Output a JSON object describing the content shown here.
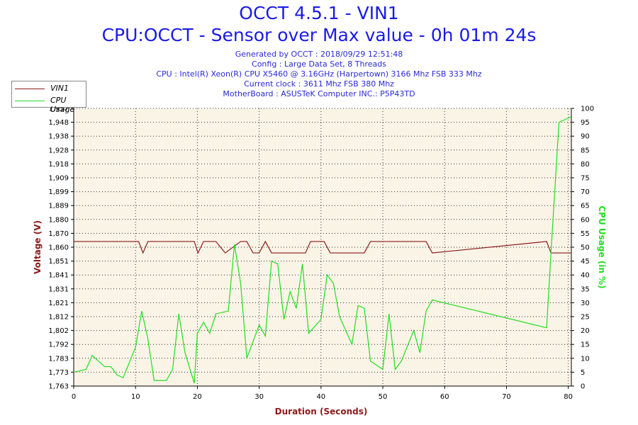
{
  "header": {
    "title": "OCCT 4.5.1 - VIN1",
    "subtitle": "CPU:OCCT - Sensor over Max value - 0h 01m 24s",
    "info_lines": [
      "Generated by OCCT : 2018/09/29 12:51:48",
      "Config : Large Data Set, 8 Threads",
      "CPU : Intel(R) Xeon(R) CPU X5460 @ 3.16GHz (Harpertown) 3166 Mhz FSB 333 Mhz",
      "Current clock : 3611 Mhz FSB 380 Mhz",
      "MotherBoard : ASUSTeK Computer INC.: P5P43TD"
    ]
  },
  "legend": {
    "items": [
      {
        "label": "VIN1",
        "color": "#8b1a1a"
      },
      {
        "label": "CPU Usage",
        "color": "#22dd22"
      }
    ]
  },
  "chart_data": {
    "type": "line",
    "xlabel": "Duration (Seconds)",
    "ylabel": "Voltage (V)",
    "y2label": "CPU Usage (in %)",
    "xlim": [
      0,
      80.5
    ],
    "ylim": [
      1.763,
      1.957
    ],
    "y2lim": [
      0,
      100
    ],
    "x_ticks": [
      0,
      10,
      20,
      30,
      40,
      50,
      60,
      70,
      80
    ],
    "y_tick_labels": [
      "1,763",
      "1,773",
      "1,783",
      "1,792",
      "1,802",
      "1,812",
      "1,821",
      "1,831",
      "1,841",
      "1,851",
      "1,860",
      "1,870",
      "1,880",
      "1,889",
      "1,899",
      "1,909",
      "1,918",
      "1,928",
      "1,938",
      "1,948",
      "1,957"
    ],
    "y2_ticks": [
      0,
      5,
      10,
      15,
      20,
      25,
      30,
      35,
      40,
      45,
      50,
      55,
      60,
      65,
      70,
      75,
      80,
      85,
      90,
      95,
      100
    ],
    "grid": true,
    "legend_position": "top-left",
    "colors": {
      "vin1": "#8b1a1a",
      "cpu": "#22dd22",
      "plot_bg": "#faf4e6",
      "axis_y": "#8b1a1a",
      "axis_y2": "#22dd22",
      "axis_x": "#8b1a1a"
    },
    "series": [
      {
        "name": "VIN1",
        "axis": "left",
        "x": [
          0,
          10.5,
          11.2,
          12,
          19.5,
          20.1,
          21,
          23,
          24.5,
          27,
          28,
          29,
          30,
          31,
          32,
          33,
          37.5,
          38.3,
          40.5,
          41.5,
          47,
          48,
          57,
          58,
          76.5,
          77.2,
          80.5
        ],
        "y": [
          1.864,
          1.864,
          1.856,
          1.864,
          1.864,
          1.856,
          1.864,
          1.864,
          1.856,
          1.864,
          1.864,
          1.856,
          1.856,
          1.864,
          1.856,
          1.856,
          1.856,
          1.864,
          1.864,
          1.856,
          1.856,
          1.864,
          1.864,
          1.856,
          1.864,
          1.856,
          1.856
        ]
      },
      {
        "name": "CPU Usage",
        "axis": "right",
        "x": [
          0,
          2,
          3,
          5,
          6,
          7,
          8,
          10,
          11,
          12,
          13,
          15,
          16,
          17,
          18,
          19.5,
          20,
          21,
          22,
          23,
          25,
          26,
          27,
          28,
          30,
          31,
          32,
          33,
          34,
          35,
          36,
          37,
          38,
          40,
          41,
          42,
          43,
          45,
          46,
          47,
          48,
          50,
          51,
          52,
          53,
          55,
          56,
          57,
          58,
          76.5,
          77.2,
          78.5,
          80.5
        ],
        "y": [
          5,
          6,
          11,
          7,
          7,
          4,
          3,
          14,
          27,
          17,
          2,
          2,
          6,
          26,
          12,
          1,
          19,
          23,
          19,
          26,
          27,
          51,
          37,
          10,
          22,
          18,
          45,
          44,
          24,
          34,
          28,
          44,
          19,
          24,
          40,
          37,
          25,
          15,
          29,
          28,
          9,
          6,
          26,
          6,
          9,
          20,
          12,
          27,
          31,
          21,
          48,
          95,
          97
        ]
      }
    ]
  }
}
